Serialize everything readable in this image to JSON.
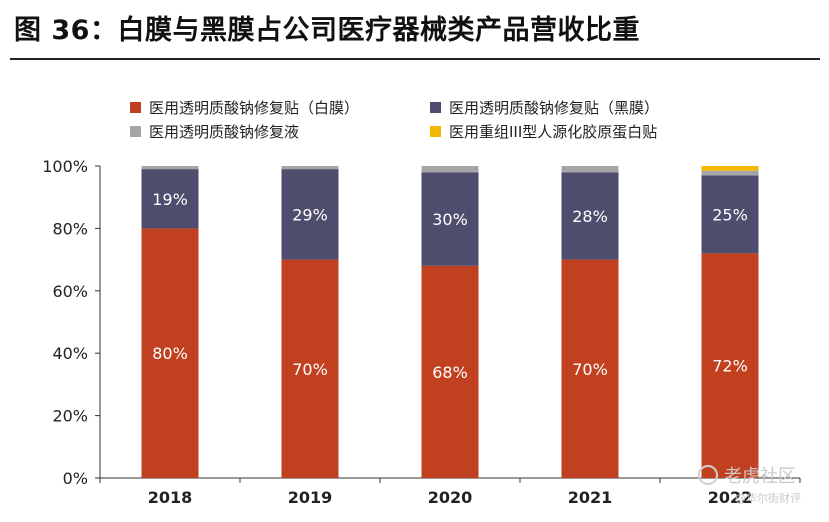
{
  "figure": {
    "title": "图 36：白膜与黑膜占公司医疗器械类产品营收比重"
  },
  "watermark": {
    "primary": "老虎社区",
    "secondary": "@华尔街财评"
  },
  "chart_data": {
    "type": "bar",
    "stacked": true,
    "categories": [
      "2018",
      "2019",
      "2020",
      "2021",
      "2022"
    ],
    "ylim": [
      0,
      100
    ],
    "yticks": [
      "0%",
      "20%",
      "40%",
      "60%",
      "80%",
      "100%"
    ],
    "grid": false,
    "legend_position": "top",
    "series": [
      {
        "name": "医用透明质酸钠修复贴（白膜）",
        "color": "#C0401F",
        "values": [
          80,
          70,
          68,
          70,
          72
        ],
        "labels": [
          "80%",
          "70%",
          "68%",
          "70%",
          "72%"
        ]
      },
      {
        "name": "医用透明质酸钠修复贴（黑膜）",
        "color": "#4F4D6D",
        "values": [
          19,
          29,
          30,
          28,
          25
        ],
        "labels": [
          "19%",
          "29%",
          "30%",
          "28%",
          "25%"
        ]
      },
      {
        "name": "医用透明质酸钠修复液",
        "color": "#A5A5A5",
        "values": [
          1,
          1,
          2,
          2,
          1.5
        ],
        "labels": [
          "",
          "",
          "",
          "",
          ""
        ]
      },
      {
        "name": "医用重组III型人源化胶原蛋白贴",
        "color": "#F5B800",
        "values": [
          0,
          0,
          0,
          0,
          1.5
        ],
        "labels": [
          "",
          "",
          "",
          "",
          ""
        ]
      }
    ]
  }
}
